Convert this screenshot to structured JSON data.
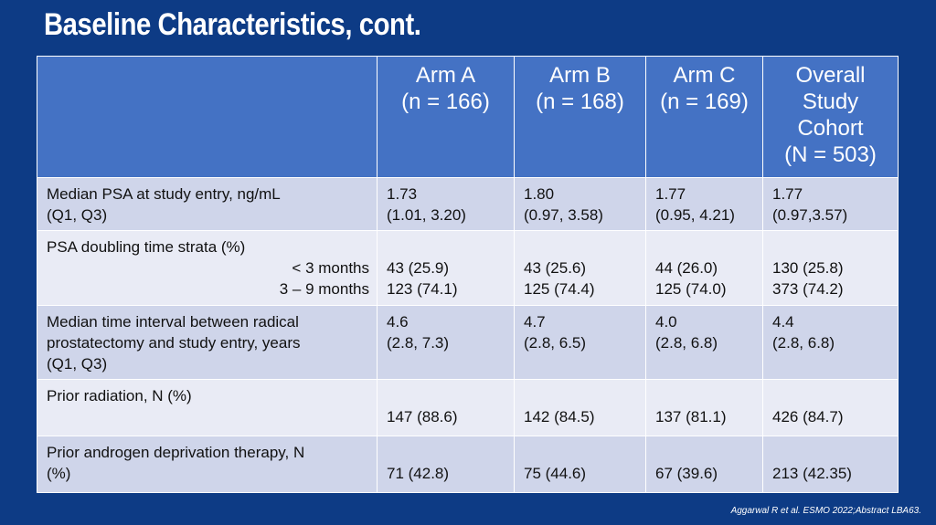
{
  "title": "Baseline Characteristics, cont.",
  "header": {
    "arm_a": [
      "Arm A",
      "(n = 166)"
    ],
    "arm_b": [
      "Arm B",
      "(n = 168)"
    ],
    "arm_c": [
      "Arm C",
      "(n = 169)"
    ],
    "overall": [
      "Overall",
      "Study",
      "Cohort",
      "(N = 503)"
    ]
  },
  "rows": [
    {
      "label": [
        "Median PSA at study entry, ng/mL",
        "(Q1, Q3)"
      ],
      "arm_a": [
        "1.73",
        "(1.01, 3.20)"
      ],
      "arm_b": [
        "1.80",
        "(0.97, 3.58)"
      ],
      "arm_c": [
        "1.77",
        "(0.95, 4.21)"
      ],
      "overall": [
        "1.77",
        "(0.97,3.57)"
      ]
    },
    {
      "label": [
        "PSA doubling time strata (%)"
      ],
      "sublabels": [
        "< 3 months",
        "3 – 9 months"
      ],
      "arm_a": [
        "43 (25.9)",
        "123 (74.1)"
      ],
      "arm_b": [
        "43 (25.6)",
        "125 (74.4)"
      ],
      "arm_c": [
        "44 (26.0)",
        "125 (74.0)"
      ],
      "overall": [
        "130 (25.8)",
        "373 (74.2)"
      ]
    },
    {
      "label": [
        "Median time interval between radical",
        "prostatectomy and study entry, years",
        "(Q1, Q3)"
      ],
      "arm_a": [
        "4.6",
        "(2.8, 7.3)"
      ],
      "arm_b": [
        "4.7",
        "(2.8, 6.5)"
      ],
      "arm_c": [
        "4.0",
        "(2.8, 6.8)"
      ],
      "overall": [
        "4.4",
        "(2.8, 6.8)"
      ]
    },
    {
      "label": [
        "Prior radiation, N (%)"
      ],
      "arm_a": [
        "147 (88.6)"
      ],
      "arm_b": [
        "142 (84.5)"
      ],
      "arm_c": [
        "137 (81.1)"
      ],
      "overall": [
        "426 (84.7)"
      ]
    },
    {
      "label": [
        "Prior androgen deprivation therapy, N",
        "(%)"
      ],
      "arm_a": [
        "71 (42.8)"
      ],
      "arm_b": [
        "75 (44.6)"
      ],
      "arm_c": [
        "67 (39.6)"
      ],
      "overall": [
        "213 (42.35)"
      ]
    }
  ],
  "source": "Aggarwal R et al. ESMO 2022;Abstract LBA63."
}
